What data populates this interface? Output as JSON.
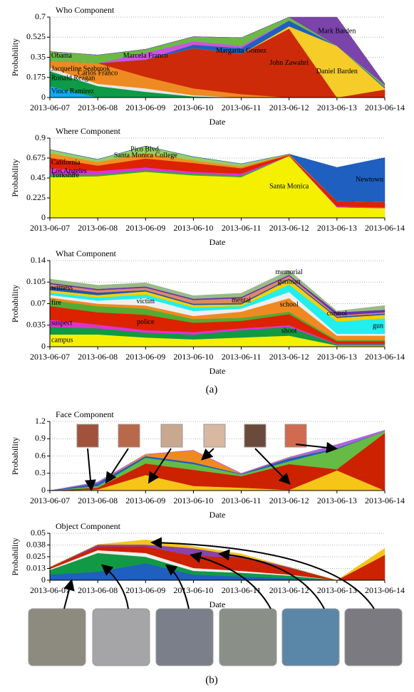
{
  "chart_data": [
    {
      "type": "area",
      "title": "Who Component",
      "x_label": "Date",
      "y_label": "Probability",
      "categories": [
        "2013-06-07",
        "2013-06-08",
        "2013-06-09",
        "2013-06-10",
        "2013-06-11",
        "2013-06-12",
        "2013-06-13",
        "2013-06-14"
      ],
      "ylim": [
        0,
        0.7
      ],
      "yticks": [
        0,
        0.175,
        0.35,
        0.525,
        0.7
      ],
      "grid": true,
      "series": [
        {
          "name": "Vince Ramirez",
          "color": "#11aaf0",
          "values": [
            0.1,
            0,
            0,
            0,
            0,
            0,
            0,
            0
          ]
        },
        {
          "name": "Ronald Reagan",
          "color": "#0e9a46",
          "values": [
            0.13,
            0.1,
            0.05,
            0.01,
            0,
            0,
            0,
            0
          ]
        },
        {
          "name": "Jacqueline Seabrook",
          "color": "#e6e6e6",
          "values": [
            0.03,
            0.02,
            0.03,
            0.01,
            0,
            0,
            0,
            0
          ]
        },
        {
          "name": "Carlos Franco",
          "color": "#ee8a22",
          "values": [
            0.06,
            0.18,
            0.1,
            0.06,
            0.03,
            0,
            0,
            0
          ]
        },
        {
          "name": "John Zawahri",
          "color": "#cc2a08",
          "values": [
            0,
            0,
            0.15,
            0.35,
            0.35,
            0.6,
            0,
            0.07
          ]
        },
        {
          "name": "Daniel Barden",
          "color": "#f5cc28",
          "values": [
            0,
            0,
            0,
            0,
            0,
            0.02,
            0.45,
            0.01
          ]
        },
        {
          "name": "Margarita Gomez",
          "color": "#1f5fbf",
          "values": [
            0,
            0,
            0,
            0.03,
            0.05,
            0.05,
            0,
            0.01
          ]
        },
        {
          "name": "Marcela Franco",
          "color": "#cc55dd",
          "values": [
            0,
            0,
            0.06,
            0.03,
            0.02,
            0,
            0,
            0
          ]
        },
        {
          "name": "Obama",
          "color": "#6abb44",
          "values": [
            0.08,
            0.07,
            0.03,
            0.04,
            0.07,
            0.03,
            0,
            0.02
          ]
        },
        {
          "name": "Mark Barden",
          "color": "#7a44aa",
          "values": [
            0,
            0,
            0,
            0,
            0,
            0,
            0.25,
            0.01
          ]
        }
      ]
    },
    {
      "type": "area",
      "title": "Where Component",
      "x_label": "Date",
      "y_label": "Probability",
      "categories": [
        "2013-06-07",
        "2013-06-08",
        "2013-06-09",
        "2013-06-10",
        "2013-06-11",
        "2013-06-12",
        "2013-06-13",
        "2013-06-14"
      ],
      "ylim": [
        0,
        0.9
      ],
      "yticks": [
        0,
        0.225,
        0.45,
        0.675,
        0.9
      ],
      "grid": true,
      "series": [
        {
          "name": "Santa Monica",
          "color": "#f5f000",
          "values": [
            0.46,
            0.47,
            0.52,
            0.48,
            0.46,
            0.7,
            0.12,
            0.11
          ]
        },
        {
          "name": "Yorkshire",
          "color": "#33aa33",
          "values": [
            0.03,
            0.02,
            0.02,
            0.02,
            0.02,
            0,
            0,
            0
          ]
        },
        {
          "name": "Los Angeles",
          "color": "#dd33dd",
          "values": [
            0.07,
            0.04,
            0.03,
            0.02,
            0.02,
            0,
            0.01,
            0.01
          ]
        },
        {
          "name": "California",
          "color": "#dd2200",
          "values": [
            0.12,
            0.06,
            0.1,
            0.1,
            0.06,
            0.01,
            0.06,
            0.06
          ]
        },
        {
          "name": "Santa Monica College",
          "color": "#f09020",
          "values": [
            0.05,
            0.04,
            0.06,
            0.03,
            0.02,
            0.01,
            0,
            0
          ]
        },
        {
          "name": "Pico Blvd.",
          "color": "#99cc66",
          "values": [
            0.04,
            0.03,
            0.08,
            0.04,
            0.03,
            0,
            0,
            0
          ]
        },
        {
          "name": "Newtown",
          "color": "#1f5fbf",
          "values": [
            0,
            0,
            0,
            0,
            0,
            0,
            0.38,
            0.5
          ]
        }
      ]
    },
    {
      "type": "area",
      "title": "What Component",
      "x_label": "Date",
      "y_label": "Probability",
      "categories": [
        "2013-06-07",
        "2013-06-08",
        "2013-06-09",
        "2013-06-10",
        "2013-06-11",
        "2013-06-12",
        "2013-06-13",
        "2013-06-14"
      ],
      "ylim": [
        0,
        0.14
      ],
      "yticks": [
        0,
        0.035,
        0.07,
        0.105,
        0.14
      ],
      "grid": true,
      "series": [
        {
          "name": "campus",
          "color": "#f5f000",
          "values": [
            0.02,
            0.02,
            0.015,
            0.012,
            0.015,
            0.018,
            0.002,
            0.002
          ]
        },
        {
          "name": "shoot",
          "color": "#119944",
          "values": [
            0.012,
            0.01,
            0.008,
            0.008,
            0.012,
            0.014,
            0.002,
            0.002
          ]
        },
        {
          "name": "suspect",
          "color": "#dd33cc",
          "values": [
            0.012,
            0.006,
            0.004,
            0.004,
            0.003,
            0.003,
            0.001,
            0.001
          ]
        },
        {
          "name": "police",
          "color": "#dd2200",
          "values": [
            0.022,
            0.02,
            0.025,
            0.015,
            0.012,
            0.018,
            0.004,
            0.004
          ]
        },
        {
          "name": "fire",
          "color": "#55aa33",
          "values": [
            0.01,
            0.01,
            0.01,
            0.006,
            0.005,
            0.004,
            0.002,
            0.002
          ]
        },
        {
          "name": "school",
          "color": "#f08a20",
          "values": [
            0.004,
            0.004,
            0.005,
            0.005,
            0.01,
            0.022,
            0.007,
            0.007
          ]
        },
        {
          "name": "victim",
          "color": "#eeeeee",
          "values": [
            0.004,
            0.005,
            0.012,
            0.008,
            0.005,
            0.01,
            0.003,
            0.003
          ]
        },
        {
          "name": "gun",
          "color": "#22eeee",
          "values": [
            0.004,
            0.005,
            0.006,
            0.006,
            0.004,
            0.012,
            0.02,
            0.025
          ]
        },
        {
          "name": "gunman",
          "color": "#f5d000",
          "values": [
            0.004,
            0.004,
            0.005,
            0.004,
            0.003,
            0.008,
            0.006,
            0.006
          ]
        },
        {
          "name": "witness",
          "color": "#2255aa",
          "values": [
            0.006,
            0.004,
            0.002,
            0.002,
            0.002,
            0.002,
            0.002,
            0.002
          ]
        },
        {
          "name": "mental",
          "color": "#dd8866",
          "values": [
            0.004,
            0.004,
            0.004,
            0.006,
            0.008,
            0.004,
            0.002,
            0.002
          ]
        },
        {
          "name": "control",
          "color": "#6633aa",
          "values": [
            0.002,
            0.002,
            0.002,
            0.002,
            0.002,
            0.002,
            0.005,
            0.004
          ]
        },
        {
          "name": "memorial",
          "color": "#99bb88",
          "values": [
            0.006,
            0.006,
            0.006,
            0.005,
            0.006,
            0.007,
            0.002,
            0.007
          ]
        }
      ]
    },
    {
      "type": "area",
      "title": "Face Component",
      "x_label": "Date",
      "y_label": "Probability",
      "categories": [
        "2013-06-07",
        "2013-06-08",
        "2013-06-09",
        "2013-06-10",
        "2013-06-11",
        "2013-06-12",
        "2013-06-13",
        "2013-06-14"
      ],
      "ylim": [
        0,
        1.2
      ],
      "yticks": [
        0,
        0.3,
        0.6,
        0.9,
        1.2
      ],
      "grid": true,
      "series": [
        {
          "color": "#f5c518",
          "values": [
            0,
            0.02,
            0.27,
            0.08,
            0.05,
            0.01,
            0.35,
            0
          ]
        },
        {
          "color": "#cc2200",
          "values": [
            0,
            0.03,
            0.2,
            0.28,
            0.2,
            0.45,
            0.02,
            1.0
          ]
        },
        {
          "color": "#66bb44",
          "values": [
            0,
            0.03,
            0.1,
            0.1,
            0.03,
            0.05,
            0.35,
            0.03
          ]
        },
        {
          "color": "#1f5fbf",
          "values": [
            0,
            0.05,
            0.03,
            0.03,
            0.01,
            0.05,
            0.02,
            0
          ]
        },
        {
          "color": "#f08a20",
          "values": [
            0,
            0,
            0.03,
            0.21,
            0,
            0.01,
            0,
            0
          ]
        },
        {
          "color": "#aa66dd",
          "values": [
            0,
            0.02,
            0,
            0,
            0.01,
            0.01,
            0.06,
            0.02
          ]
        }
      ]
    },
    {
      "type": "area",
      "title": "Object Component",
      "x_label": "Date",
      "y_label": "Probability",
      "categories": [
        "2013-06-07",
        "2013-06-08",
        "2013-06-09",
        "2013-06-10",
        "2013-06-11",
        "2013-06-12",
        "2013-06-13",
        "2013-06-14"
      ],
      "ylim": [
        0,
        0.05
      ],
      "yticks": [
        0,
        {
          "value": 0.0125,
          "label": "0.013"
        },
        0.025,
        {
          "value": 0.0375,
          "label": "0.038"
        },
        0.05
      ],
      "grid": true,
      "series": [
        {
          "color": "#1f5fbf",
          "values": [
            0.006,
            0.009,
            0.018,
            0.006,
            0.004,
            0.002,
            0,
            0
          ]
        },
        {
          "color": "#119944",
          "values": [
            0.005,
            0.02,
            0.007,
            0.004,
            0.004,
            0.003,
            0,
            0
          ]
        },
        {
          "color": "#eeeeee",
          "values": [
            0.001,
            0.003,
            0.004,
            0.003,
            0.002,
            0.001,
            0,
            0
          ]
        },
        {
          "color": "#cc2200",
          "values": [
            0.002,
            0.004,
            0.007,
            0.013,
            0.014,
            0.007,
            0,
            0.027
          ]
        },
        {
          "color": "#8844aa",
          "values": [
            0,
            0.002,
            0.002,
            0.008,
            0.002,
            0.001,
            0,
            0
          ]
        },
        {
          "color": "#f5c518",
          "values": [
            0,
            0,
            0.005,
            0.002,
            0.002,
            0,
            0,
            0.007
          ]
        }
      ]
    }
  ],
  "figure_labels": [
    "(a)",
    "(b)"
  ]
}
